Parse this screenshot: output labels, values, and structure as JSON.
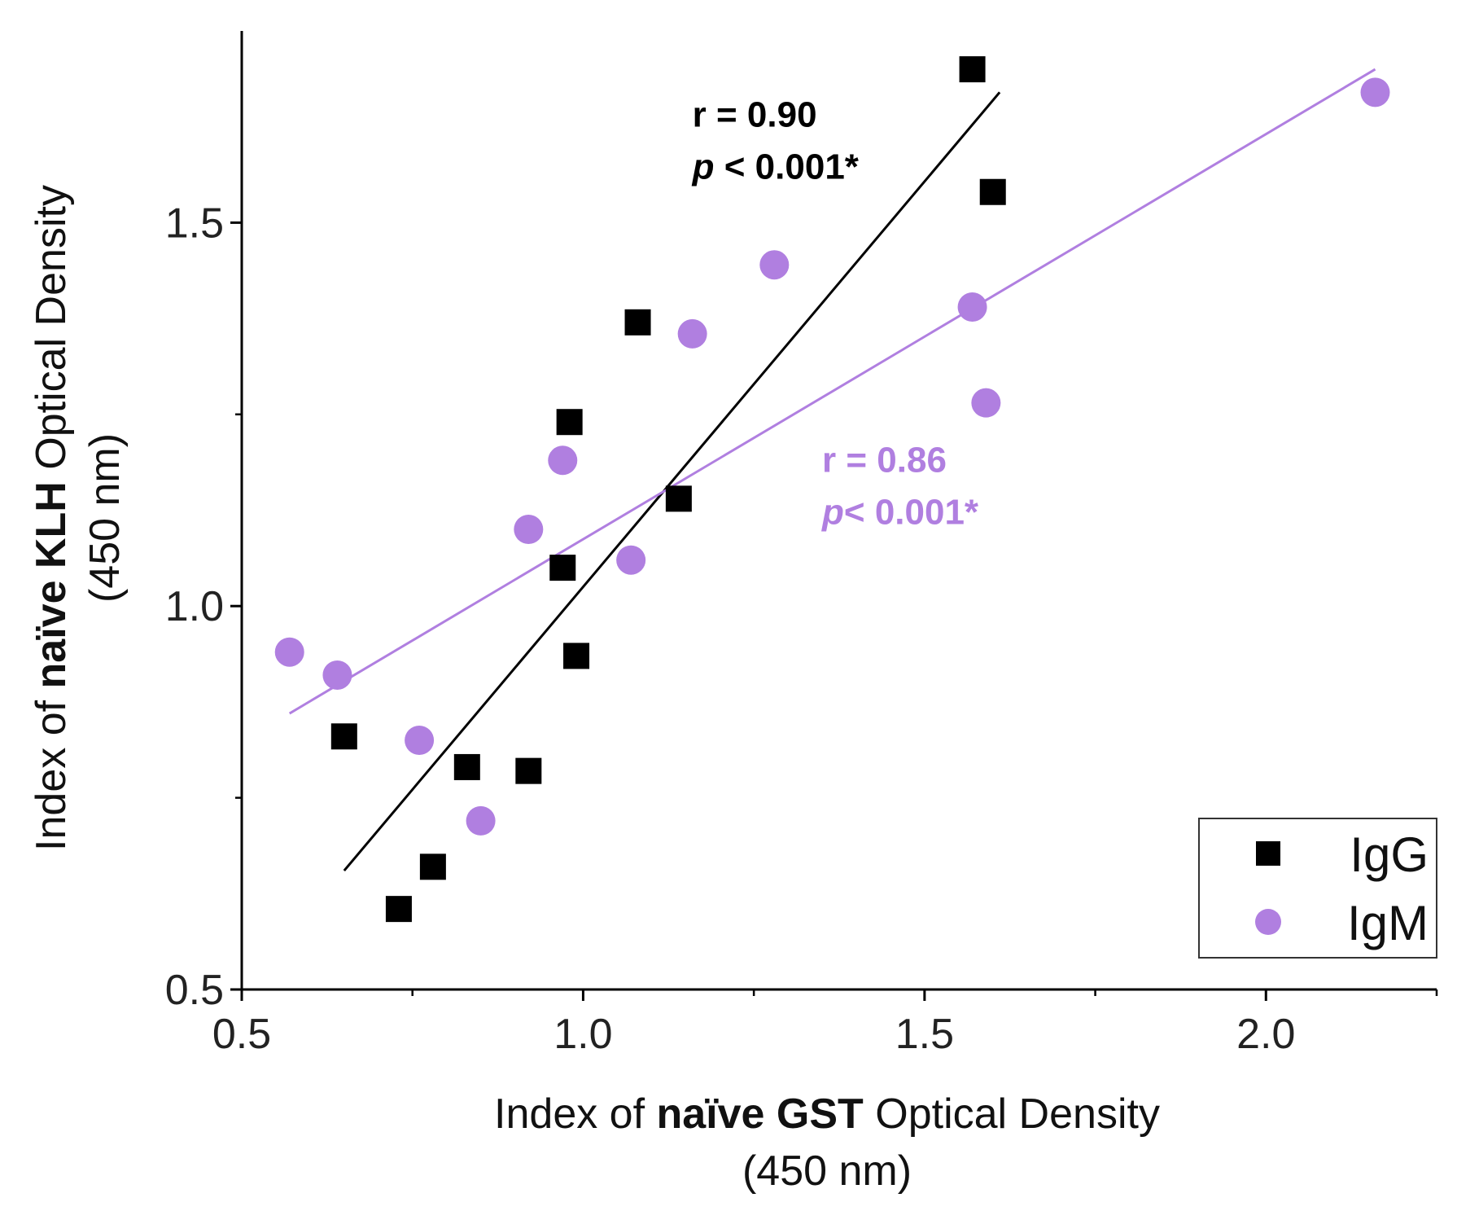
{
  "chart_data": {
    "type": "scatter",
    "x_axis": {
      "label_parts": [
        {
          "text": "Index of ",
          "bold": false
        },
        {
          "text": "naïve GST",
          "bold": true
        },
        {
          "text": " Optical Density",
          "bold": false
        }
      ],
      "label_line2": "(450 nm)",
      "range": [
        0.5,
        2.25
      ],
      "ticks": [
        0.5,
        1.0,
        1.5,
        2.0
      ],
      "tick_labels": [
        "0.5",
        "1.0",
        "1.5",
        "2.0"
      ],
      "minor_ticks": [
        0.75,
        1.25,
        1.75,
        2.25
      ]
    },
    "y_axis": {
      "label_parts": [
        {
          "text": "Index of ",
          "bold": false
        },
        {
          "text": "naïve KLH",
          "bold": true
        },
        {
          "text": " Optical Density",
          "bold": false
        }
      ],
      "label_line2": "(450 nm)",
      "range": [
        0.5,
        1.75
      ],
      "ticks": [
        0.5,
        1.0,
        1.5
      ],
      "tick_labels": [
        "0.5",
        "1.0",
        "1.5"
      ],
      "minor_ticks": [
        0.75,
        1.25
      ]
    },
    "grid": false,
    "legend_position": "bottom-right",
    "series": [
      {
        "name": "IgG",
        "marker": "square",
        "color": "#000000",
        "points": [
          {
            "x": 1.57,
            "y": 1.7
          },
          {
            "x": 1.6,
            "y": 1.54
          },
          {
            "x": 1.08,
            "y": 1.37
          },
          {
            "x": 0.98,
            "y": 1.24
          },
          {
            "x": 1.14,
            "y": 1.14
          },
          {
            "x": 0.97,
            "y": 1.05
          },
          {
            "x": 0.99,
            "y": 0.935
          },
          {
            "x": 0.65,
            "y": 0.83
          },
          {
            "x": 0.83,
            "y": 0.79
          },
          {
            "x": 0.92,
            "y": 0.785
          },
          {
            "x": 0.78,
            "y": 0.66
          },
          {
            "x": 0.73,
            "y": 0.605
          }
        ],
        "fit_line": {
          "x": [
            0.65,
            1.61
          ],
          "y": [
            0.655,
            1.67
          ]
        },
        "annotation": {
          "r_text": "r = 0.90",
          "p_italic": "p",
          "p_rest": " < 0.001*",
          "x": 1.16,
          "y": 1.625
        }
      },
      {
        "name": "IgM",
        "marker": "circle",
        "color": "#b07fe0",
        "points": [
          {
            "x": 2.16,
            "y": 1.67
          },
          {
            "x": 1.28,
            "y": 1.445
          },
          {
            "x": 1.57,
            "y": 1.39
          },
          {
            "x": 1.16,
            "y": 1.355
          },
          {
            "x": 1.59,
            "y": 1.265
          },
          {
            "x": 0.97,
            "y": 1.19
          },
          {
            "x": 0.92,
            "y": 1.1
          },
          {
            "x": 1.07,
            "y": 1.06
          },
          {
            "x": 0.57,
            "y": 0.94
          },
          {
            "x": 0.64,
            "y": 0.91
          },
          {
            "x": 0.76,
            "y": 0.825
          },
          {
            "x": 0.85,
            "y": 0.72
          }
        ],
        "fit_line": {
          "x": [
            0.57,
            2.16
          ],
          "y": [
            0.86,
            1.7
          ]
        },
        "annotation": {
          "r_text": "r = 0.86",
          "p_italic": "p",
          "p_rest": "< 0.001*",
          "x": 1.35,
          "y": 1.175
        }
      }
    ]
  }
}
